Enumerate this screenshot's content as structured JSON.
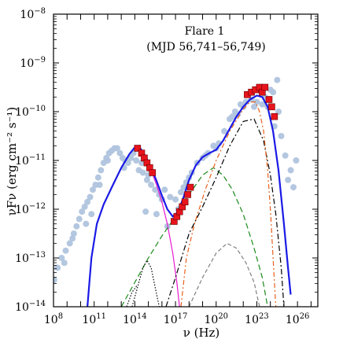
{
  "chart_data": {
    "type": "scatter",
    "title": "Flare 1",
    "subtitle": "(MJD 56,741–56,749)",
    "xlabel": "ν (Hz)",
    "ylabel": "νFν (erg cm⁻² s⁻¹)",
    "x_log_range": [
      8,
      27.5
    ],
    "y_log_range": [
      -14,
      -8
    ],
    "x_scale": "log",
    "y_scale": "log",
    "x_ticks": [
      {
        "log": 8,
        "base": "10",
        "exp": "8"
      },
      {
        "log": 11,
        "base": "10",
        "exp": "11"
      },
      {
        "log": 14,
        "base": "10",
        "exp": "14"
      },
      {
        "log": 17,
        "base": "10",
        "exp": "17"
      },
      {
        "log": 20,
        "base": "10",
        "exp": "20"
      },
      {
        "log": 23,
        "base": "10",
        "exp": "23"
      },
      {
        "log": 26,
        "base": "10",
        "exp": "26"
      }
    ],
    "y_ticks": [
      {
        "log": -8,
        "base": "10",
        "exp": "−8"
      },
      {
        "log": -9,
        "base": "10",
        "exp": "−9"
      },
      {
        "log": -10,
        "base": "10",
        "exp": "−10"
      },
      {
        "log": -11,
        "base": "10",
        "exp": "−11"
      },
      {
        "log": -12,
        "base": "10",
        "exp": "−12"
      },
      {
        "log": -13,
        "base": "10",
        "exp": "−13"
      },
      {
        "log": -14,
        "base": "10",
        "exp": "−14"
      }
    ],
    "colors": {
      "archival": "#b0c4de",
      "flare": "#e8141c",
      "total": "#1a1ae6",
      "synchrotron": "#e61ad0",
      "ssc": "#1a8a1a",
      "ec_blr": "#000000",
      "ec_disk": "#e8601c",
      "ec_torus": "#808080",
      "disk_thermal": "#000000"
    },
    "archival_points": [
      [
        8.05,
        -13.45
      ],
      [
        8.3,
        -13.2
      ],
      [
        8.6,
        -13.0
      ],
      [
        8.9,
        -12.85
      ],
      [
        9.2,
        -12.7
      ],
      [
        9.5,
        -12.5
      ],
      [
        9.7,
        -12.35
      ],
      [
        9.9,
        -12.2
      ],
      [
        10.1,
        -12.05
      ],
      [
        10.3,
        -11.95
      ],
      [
        10.5,
        -11.85
      ],
      [
        10.7,
        -11.75
      ],
      [
        10.9,
        -11.6
      ],
      [
        11.1,
        -11.5
      ],
      [
        11.3,
        -11.35
      ],
      [
        11.5,
        -11.2
      ],
      [
        11.7,
        -11.05
      ],
      [
        11.9,
        -10.95
      ],
      [
        12.1,
        -10.85
      ],
      [
        12.3,
        -10.8
      ],
      [
        12.5,
        -10.75
      ],
      [
        12.7,
        -10.75
      ],
      [
        12.9,
        -10.85
      ],
      [
        13.1,
        -10.95
      ],
      [
        13.3,
        -11.0
      ],
      [
        13.5,
        -11.05
      ],
      [
        13.7,
        -10.95
      ],
      [
        13.9,
        -10.85
      ],
      [
        14.1,
        -11.0
      ],
      [
        14.3,
        -11.2
      ],
      [
        14.6,
        -11.25
      ],
      [
        14.9,
        -11.4
      ],
      [
        15.2,
        -11.5
      ],
      [
        15.5,
        -11.6
      ],
      [
        15.8,
        -11.7
      ],
      [
        16.2,
        -11.6
      ],
      [
        16.6,
        -11.75
      ],
      [
        17.0,
        -11.8
      ],
      [
        17.4,
        -11.65
      ],
      [
        17.8,
        -11.45
      ],
      [
        18.2,
        -11.25
      ],
      [
        18.6,
        -11.05
      ],
      [
        19.0,
        -10.95
      ],
      [
        19.4,
        -10.85
      ],
      [
        19.8,
        -10.7
      ],
      [
        20.2,
        -10.65
      ],
      [
        20.6,
        -10.4
      ],
      [
        21.0,
        -10.15
      ],
      [
        21.4,
        -10.0
      ],
      [
        21.8,
        -9.85
      ],
      [
        22.2,
        -9.8
      ],
      [
        22.6,
        -9.75
      ],
      [
        23.0,
        -9.8
      ],
      [
        23.4,
        -9.85
      ],
      [
        23.8,
        -9.9
      ],
      [
        24.2,
        -9.6
      ],
      [
        24.5,
        -9.35
      ],
      [
        24.8,
        -10.5
      ],
      [
        25.1,
        -10.9
      ],
      [
        25.5,
        -11.2
      ],
      [
        25.9,
        -11.0
      ],
      [
        10.4,
        -12.3
      ],
      [
        10.8,
        -12.1
      ],
      [
        11.4,
        -11.5
      ],
      [
        12.0,
        -11.0
      ],
      [
        14.5,
        -11.05
      ],
      [
        15.0,
        -11.3
      ],
      [
        16.0,
        -11.8
      ],
      [
        17.2,
        -12.0
      ],
      [
        18.0,
        -11.35
      ],
      [
        19.2,
        -10.9
      ],
      [
        20.0,
        -10.75
      ],
      [
        21.2,
        -10.1
      ],
      [
        22.0,
        -9.9
      ],
      [
        23.6,
        -9.7
      ],
      [
        24.0,
        -9.55
      ],
      [
        24.6,
        -10.0
      ],
      [
        25.3,
        -11.4
      ],
      [
        8.8,
        -13.1
      ],
      [
        9.4,
        -12.6
      ],
      [
        13.2,
        -11.15
      ],
      [
        14.8,
        -12.05
      ],
      [
        15.6,
        -12.1
      ],
      [
        16.4,
        -12.35
      ],
      [
        17.6,
        -11.55
      ],
      [
        21.6,
        -10.05
      ],
      [
        22.8,
        -9.9
      ],
      [
        24.3,
        -10.3
      ],
      [
        25.7,
        -11.55
      ]
    ],
    "flare_points": [
      [
        14.2,
        -10.75
      ],
      [
        14.5,
        -10.85
      ],
      [
        14.7,
        -10.95
      ],
      [
        14.9,
        -11.05
      ],
      [
        15.1,
        -11.15
      ],
      [
        15.3,
        -11.25
      ],
      [
        16.9,
        -12.25
      ],
      [
        17.1,
        -12.15
      ],
      [
        17.3,
        -12.05
      ],
      [
        17.5,
        -11.95
      ],
      [
        17.7,
        -11.85
      ],
      [
        17.9,
        -11.7
      ],
      [
        18.1,
        -11.55
      ],
      [
        22.3,
        -9.65
      ],
      [
        22.6,
        -9.6
      ],
      [
        22.9,
        -9.55
      ],
      [
        23.2,
        -9.5
      ],
      [
        23.4,
        -9.6
      ],
      [
        23.6,
        -9.5
      ],
      [
        23.9,
        -9.75
      ],
      [
        24.1,
        -9.9
      ],
      [
        24.3,
        -10.1
      ]
    ],
    "curves": {
      "total": [
        [
          10.5,
          -14.0
        ],
        [
          10.8,
          -13.0
        ],
        [
          11.2,
          -12.3
        ],
        [
          11.7,
          -11.9
        ],
        [
          12.3,
          -11.55
        ],
        [
          13.0,
          -11.15
        ],
        [
          13.6,
          -10.87
        ],
        [
          14.0,
          -10.73
        ],
        [
          14.4,
          -10.75
        ],
        [
          14.8,
          -10.92
        ],
        [
          15.2,
          -11.15
        ],
        [
          15.6,
          -11.42
        ],
        [
          16.0,
          -11.72
        ],
        [
          16.4,
          -12.0
        ],
        [
          16.8,
          -12.15
        ],
        [
          17.2,
          -12.05
        ],
        [
          17.6,
          -11.75
        ],
        [
          18.0,
          -11.4
        ],
        [
          18.5,
          -11.1
        ],
        [
          19.0,
          -10.93
        ],
        [
          19.5,
          -10.85
        ],
        [
          20.0,
          -10.78
        ],
        [
          20.5,
          -10.6
        ],
        [
          21.0,
          -10.35
        ],
        [
          21.5,
          -10.1
        ],
        [
          22.0,
          -9.9
        ],
        [
          22.5,
          -9.75
        ],
        [
          23.0,
          -9.67
        ],
        [
          23.4,
          -9.7
        ],
        [
          23.8,
          -9.9
        ],
        [
          24.2,
          -10.4
        ],
        [
          24.6,
          -11.2
        ],
        [
          25.0,
          -12.3
        ],
        [
          25.3,
          -13.2
        ],
        [
          25.5,
          -13.75
        ]
      ],
      "synchrotron": [
        [
          10.5,
          -14.0
        ],
        [
          10.8,
          -13.0
        ],
        [
          11.2,
          -12.3
        ],
        [
          11.7,
          -11.9
        ],
        [
          12.3,
          -11.55
        ],
        [
          13.0,
          -11.15
        ],
        [
          13.6,
          -10.87
        ],
        [
          14.0,
          -10.73
        ],
        [
          14.4,
          -10.75
        ],
        [
          14.8,
          -10.95
        ],
        [
          15.2,
          -11.2
        ],
        [
          15.6,
          -11.5
        ],
        [
          16.0,
          -11.85
        ],
        [
          16.4,
          -12.3
        ],
        [
          16.8,
          -12.9
        ],
        [
          17.1,
          -13.5
        ],
        [
          17.3,
          -14.0
        ]
      ],
      "ssc": [
        [
          13.0,
          -14.0
        ],
        [
          14.0,
          -13.5
        ],
        [
          15.0,
          -13.0
        ],
        [
          16.0,
          -12.55
        ],
        [
          17.0,
          -12.15
        ],
        [
          18.0,
          -11.7
        ],
        [
          19.0,
          -11.3
        ],
        [
          19.8,
          -11.15
        ],
        [
          20.5,
          -11.3
        ],
        [
          21.2,
          -11.6
        ],
        [
          22.0,
          -12.1
        ],
        [
          22.8,
          -12.8
        ],
        [
          23.4,
          -13.4
        ],
        [
          23.8,
          -14.0
        ]
      ],
      "ec_blr": [
        [
          16.3,
          -14.0
        ],
        [
          17.0,
          -13.4
        ],
        [
          18.0,
          -12.5
        ],
        [
          19.0,
          -11.95
        ],
        [
          20.0,
          -11.35
        ],
        [
          21.0,
          -10.7
        ],
        [
          22.0,
          -10.2
        ],
        [
          22.8,
          -10.15
        ],
        [
          23.5,
          -10.6
        ],
        [
          24.0,
          -11.3
        ],
        [
          24.4,
          -12.1
        ],
        [
          24.8,
          -13.2
        ],
        [
          25.0,
          -14.0
        ]
      ],
      "ec_disk": [
        [
          17.4,
          -14.0
        ],
        [
          17.8,
          -13.0
        ],
        [
          18.4,
          -12.3
        ],
        [
          19.2,
          -11.6
        ],
        [
          20.0,
          -11.0
        ],
        [
          21.0,
          -10.4
        ],
        [
          22.0,
          -9.95
        ],
        [
          22.5,
          -9.8
        ],
        [
          22.9,
          -9.8
        ],
        [
          23.2,
          -10.0
        ],
        [
          23.5,
          -10.4
        ],
        [
          23.8,
          -11.2
        ],
        [
          24.0,
          -12.0
        ],
        [
          24.2,
          -13.0
        ],
        [
          24.4,
          -14.0
        ]
      ],
      "ec_torus": [
        [
          18.0,
          -14.0
        ],
        [
          19.0,
          -13.4
        ],
        [
          20.0,
          -12.9
        ],
        [
          20.8,
          -12.7
        ],
        [
          21.5,
          -12.8
        ],
        [
          22.2,
          -13.1
        ],
        [
          22.8,
          -13.5
        ],
        [
          23.2,
          -14.0
        ]
      ],
      "disk_thermal": [
        [
          13.8,
          -14.0
        ],
        [
          14.2,
          -13.6
        ],
        [
          14.6,
          -13.2
        ],
        [
          14.9,
          -13.05
        ],
        [
          15.2,
          -13.2
        ],
        [
          15.5,
          -13.6
        ],
        [
          15.8,
          -14.0
        ]
      ],
      "disk_low": [
        [
          13.4,
          -14.0
        ],
        [
          13.8,
          -13.7
        ],
        [
          14.2,
          -13.55
        ]
      ]
    }
  }
}
